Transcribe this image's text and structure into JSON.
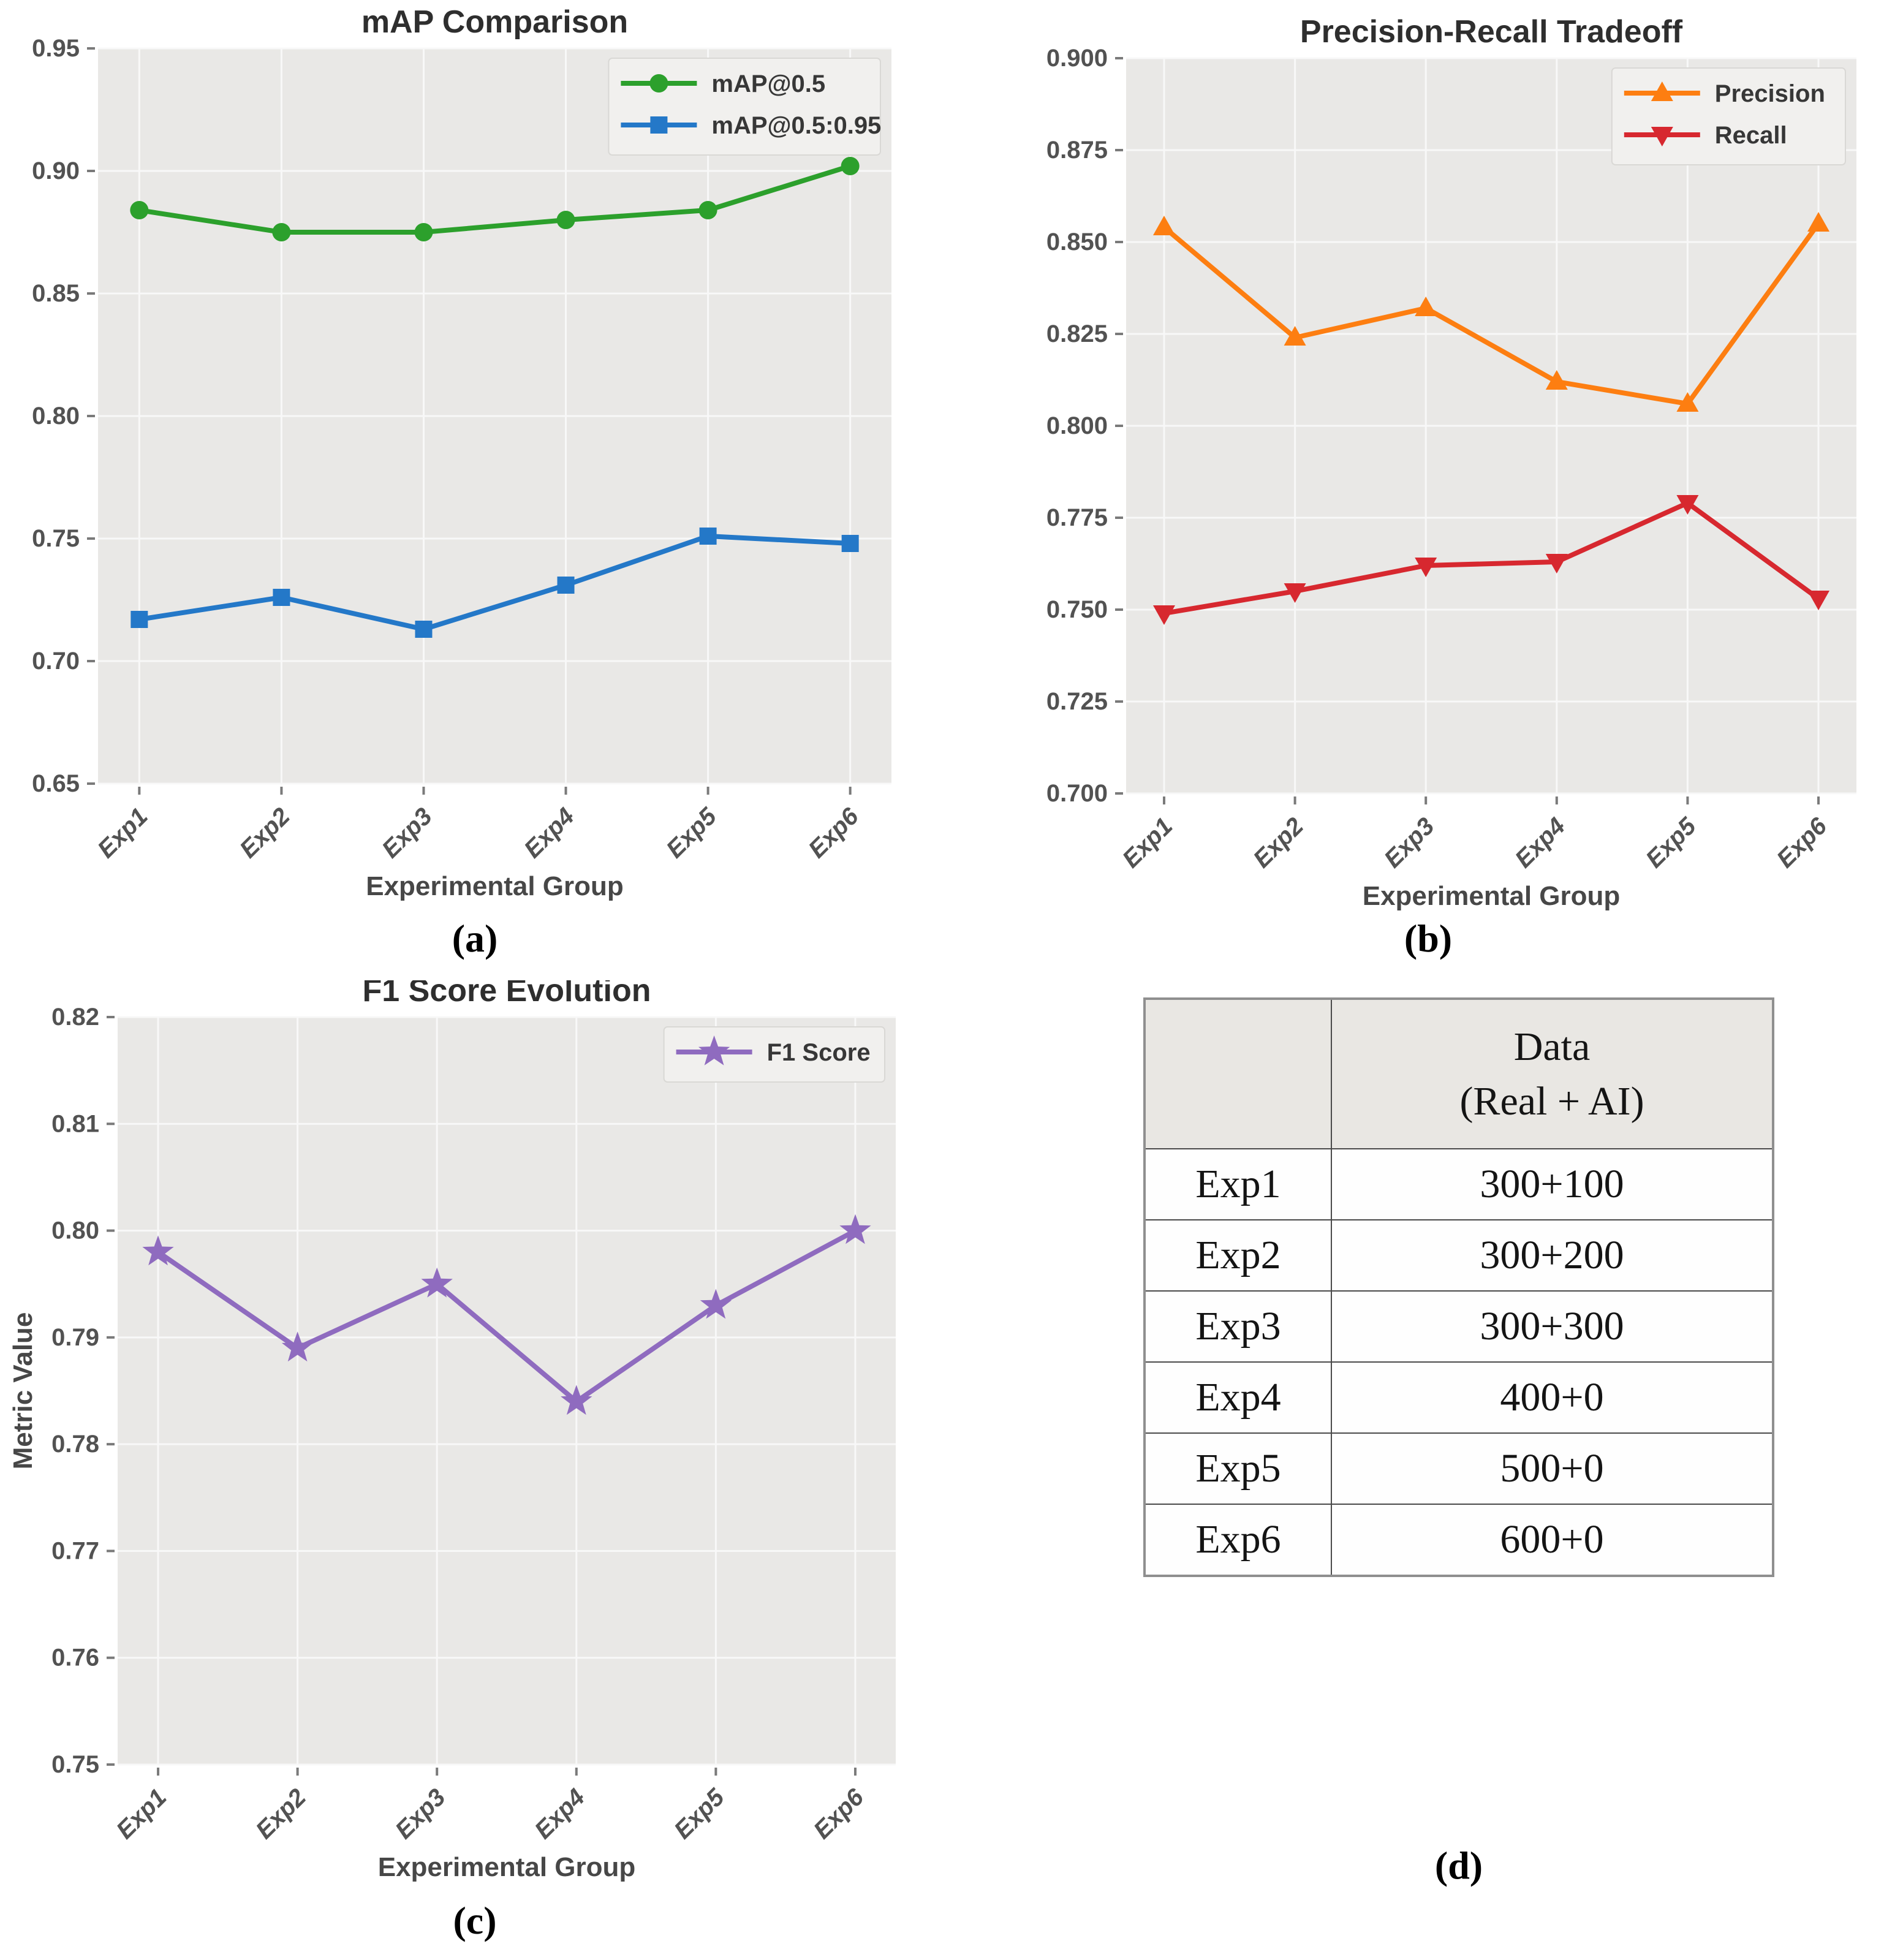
{
  "figure": {
    "captions": {
      "a": "(a)",
      "b": "(b)",
      "c": "(c)",
      "d": "(d)"
    },
    "background": "#ffffff",
    "plot_background": "#e9e8e6",
    "grid_color": "#f8f8f8"
  },
  "chart_data": [
    {
      "type": "line",
      "panel": "a",
      "title": "mAP Comparison",
      "xlabel": "Experimental Group",
      "ylabel": "",
      "categories": [
        "Exp1",
        "Exp2",
        "Exp3",
        "Exp4",
        "Exp5",
        "Exp6"
      ],
      "ylim": [
        0.65,
        0.95
      ],
      "ytick_step": 0.05,
      "ytick_decimals": 2,
      "grid": true,
      "legend_position": "top-right",
      "series": [
        {
          "name": "mAP@0.5",
          "color": "#2ca02c",
          "marker": "circle",
          "values": [
            0.884,
            0.875,
            0.875,
            0.88,
            0.884,
            0.902
          ]
        },
        {
          "name": "mAP@0.5:0.95",
          "color": "#2478c8",
          "marker": "square",
          "values": [
            0.717,
            0.726,
            0.713,
            0.731,
            0.751,
            0.748
          ]
        }
      ]
    },
    {
      "type": "line",
      "panel": "b",
      "title": "Precision-Recall Tradeoff",
      "xlabel": "Experimental Group",
      "ylabel": "",
      "categories": [
        "Exp1",
        "Exp2",
        "Exp3",
        "Exp4",
        "Exp5",
        "Exp6"
      ],
      "ylim": [
        0.7,
        0.9
      ],
      "ytick_step": 0.025,
      "ytick_decimals": 3,
      "grid": true,
      "legend_position": "top-right",
      "series": [
        {
          "name": "Precision",
          "color": "#fd7e11",
          "marker": "triangle-up",
          "values": [
            0.854,
            0.824,
            0.832,
            0.812,
            0.806,
            0.855
          ]
        },
        {
          "name": "Recall",
          "color": "#d7282f",
          "marker": "triangle-down",
          "values": [
            0.749,
            0.755,
            0.762,
            0.763,
            0.779,
            0.753
          ]
        }
      ]
    },
    {
      "type": "line",
      "panel": "c",
      "title": "F1 Score Evolution",
      "xlabel": "Experimental Group",
      "ylabel": "Metric Value",
      "categories": [
        "Exp1",
        "Exp2",
        "Exp3",
        "Exp4",
        "Exp5",
        "Exp6"
      ],
      "ylim": [
        0.75,
        0.82
      ],
      "ytick_step": 0.01,
      "ytick_decimals": 2,
      "grid": true,
      "legend_position": "top-right",
      "series": [
        {
          "name": "F1 Score",
          "color": "#8f6bbf",
          "marker": "star",
          "values": [
            0.798,
            0.789,
            0.795,
            0.784,
            0.793,
            0.8
          ]
        }
      ]
    },
    {
      "type": "table",
      "panel": "d",
      "header_line1": "Data",
      "header_line2": "(Real + AI)",
      "rows": [
        {
          "label": "Exp1",
          "value": "300+100"
        },
        {
          "label": "Exp2",
          "value": "300+200"
        },
        {
          "label": "Exp3",
          "value": "300+300"
        },
        {
          "label": "Exp4",
          "value": "400+0"
        },
        {
          "label": "Exp5",
          "value": "500+0"
        },
        {
          "label": "Exp6",
          "value": "600+0"
        }
      ]
    }
  ]
}
